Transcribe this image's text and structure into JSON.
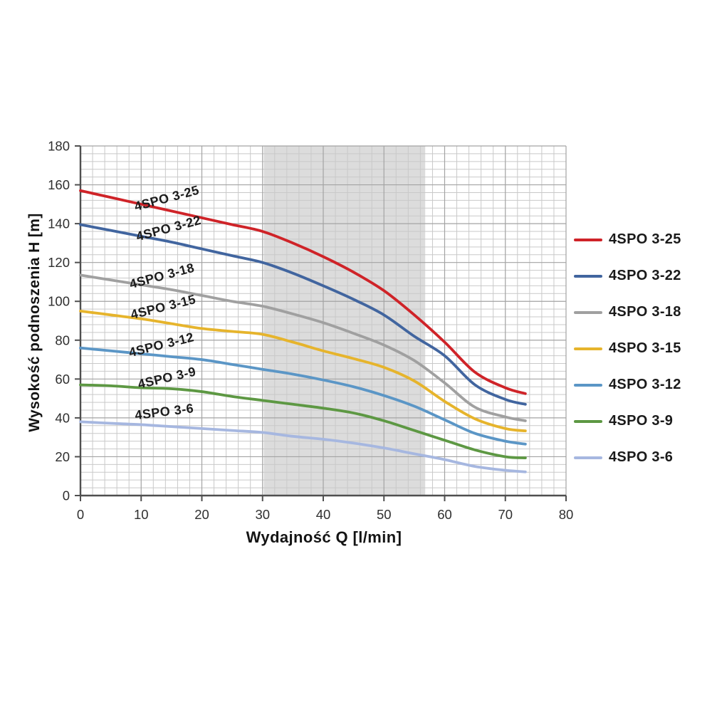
{
  "chart_data": {
    "type": "line",
    "title": "",
    "xlabel": "Wydajność Q [l/min]",
    "ylabel": "Wysokość podnoszenia H [m]",
    "xlim": [
      0,
      80
    ],
    "ylim": [
      0,
      180
    ],
    "x_ticks": [
      0,
      10,
      20,
      30,
      40,
      50,
      60,
      70,
      80
    ],
    "y_ticks": [
      0,
      20,
      40,
      60,
      80,
      100,
      120,
      140,
      160,
      180
    ],
    "x_minor_step": 2,
    "y_minor_step": 4,
    "grid": "major+minor",
    "legend_position": "right",
    "shaded_band": {
      "x_start": 30.2,
      "x_end": 56.8,
      "color": "#dcdcdc"
    },
    "x": [
      0,
      5,
      10,
      15,
      20,
      25,
      30,
      35,
      40,
      45,
      50,
      55,
      60,
      65,
      70,
      73.3
    ],
    "series": [
      {
        "name": "4SPO 3-25",
        "color": "#cf2328",
        "values": [
          157,
          153.5,
          150,
          146.5,
          143,
          139.5,
          136,
          130,
          123,
          115,
          105.5,
          93,
          79,
          63.5,
          55.5,
          52.5
        ]
      },
      {
        "name": "4SPO 3-22",
        "color": "#41659f",
        "values": [
          139.5,
          136.5,
          133.5,
          130.5,
          127,
          123.5,
          120,
          114.5,
          108,
          101,
          93,
          82,
          72,
          57,
          49.5,
          47
        ]
      },
      {
        "name": "4SPO 3-18",
        "color": "#a0a0a0",
        "values": [
          113.5,
          111,
          108.5,
          106,
          103,
          100,
          97.5,
          93.5,
          89,
          83.5,
          77.5,
          69.5,
          58,
          45.5,
          40.5,
          38.5
        ]
      },
      {
        "name": "4SPO 3-15",
        "color": "#e6b42c",
        "values": [
          95,
          93,
          91,
          88.5,
          86,
          84.5,
          83,
          79,
          74.5,
          70.5,
          66,
          59,
          48.5,
          39.5,
          34.5,
          33.3
        ]
      },
      {
        "name": "4SPO 3-12",
        "color": "#5b96c6",
        "values": [
          76,
          74.5,
          73,
          71.5,
          70,
          67.5,
          65,
          62.5,
          59.5,
          56,
          51.5,
          46,
          39,
          32,
          28,
          26.5
        ]
      },
      {
        "name": "4SPO 3-9",
        "color": "#5d9843",
        "values": [
          57,
          56.5,
          55.5,
          55,
          53.5,
          51,
          49,
          47,
          45,
          42.5,
          38.5,
          33.5,
          28.5,
          23.5,
          20,
          19.4
        ]
      },
      {
        "name": "4SPO 3-6",
        "color": "#a6b7e0",
        "values": [
          38,
          37.2,
          36.5,
          35.5,
          34.5,
          33.5,
          32.5,
          30.5,
          29,
          27,
          24.5,
          21.5,
          18.5,
          15,
          13,
          12.2
        ]
      }
    ],
    "curve_labels": [
      {
        "text": "4SPO 3-25",
        "x": 14.4,
        "y": 151,
        "angle": -15
      },
      {
        "text": "4SPO 3-22",
        "x": 14.7,
        "y": 135.5,
        "angle": -15
      },
      {
        "text": "4SPO 3-18",
        "x": 13.6,
        "y": 111,
        "angle": -15
      },
      {
        "text": "4SPO 3-15",
        "x": 13.8,
        "y": 95,
        "angle": -14
      },
      {
        "text": "4SPO 3-12",
        "x": 13.5,
        "y": 75.5,
        "angle": -14
      },
      {
        "text": "4SPO 3-9",
        "x": 14.4,
        "y": 58.5,
        "angle": -13
      },
      {
        "text": "4SPO 3-6",
        "x": 13.9,
        "y": 41,
        "angle": -7
      }
    ]
  },
  "colors": {
    "grid_minor": "#c9c9c9",
    "grid_major": "#a3a3a3",
    "axis": "#4f4f4f",
    "tick_label": "#2f2f2f",
    "curve_label": "#1c1c1c"
  }
}
